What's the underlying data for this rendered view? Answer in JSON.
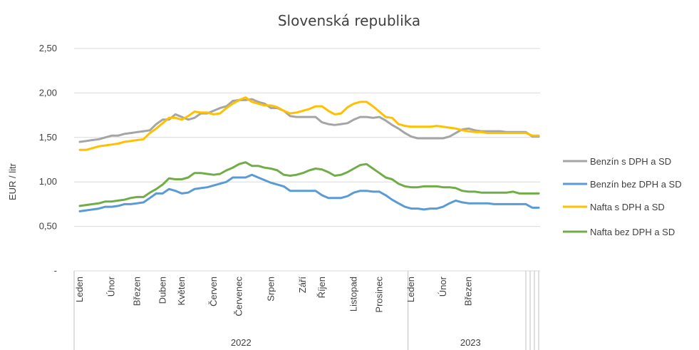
{
  "chart_data": {
    "type": "line",
    "title": "Slovenská republika",
    "ylabel": "EUR / litr",
    "ylim": [
      0,
      2.5
    ],
    "yticks": [
      {
        "value": 0,
        "label": "-"
      },
      {
        "value": 0.5,
        "label": "0,50"
      },
      {
        "value": 1.0,
        "label": "1,00"
      },
      {
        "value": 1.5,
        "label": "1,50"
      },
      {
        "value": 2.0,
        "label": "2,00"
      },
      {
        "value": 2.5,
        "label": "2,50"
      }
    ],
    "grid": true,
    "legend_position": "right",
    "x": [
      1,
      2,
      3,
      4,
      5,
      6,
      7,
      8,
      9,
      10,
      11,
      12,
      13,
      14,
      15,
      16,
      17,
      18,
      19,
      20,
      21,
      22,
      23,
      24,
      25,
      26,
      27,
      28,
      29,
      30,
      31,
      32,
      33,
      34,
      35,
      36,
      37,
      38,
      39,
      40,
      41,
      42,
      43,
      44,
      45,
      46,
      47,
      48,
      49,
      50,
      51,
      52,
      53,
      54,
      55,
      56,
      57,
      58,
      59,
      60,
      61,
      62,
      63,
      64,
      65,
      66,
      67,
      68,
      69,
      70,
      71,
      72,
      73
    ],
    "x_month_labels": [
      {
        "label": "Leden",
        "week": 1
      },
      {
        "label": "Únor",
        "week": 6
      },
      {
        "label": "Březen",
        "week": 10
      },
      {
        "label": "Duben",
        "week": 14
      },
      {
        "label": "Květen",
        "week": 17
      },
      {
        "label": "Červen",
        "week": 22
      },
      {
        "label": "Červenec",
        "week": 26
      },
      {
        "label": "Srpen",
        "week": 31
      },
      {
        "label": "Září",
        "week": 36
      },
      {
        "label": "Říjen",
        "week": 39
      },
      {
        "label": "Listopad",
        "week": 44
      },
      {
        "label": "Prosinec",
        "week": 48
      },
      {
        "label": "Leden",
        "week": 53
      },
      {
        "label": "Únor",
        "week": 58
      },
      {
        "label": "Březen",
        "week": 62
      }
    ],
    "x_year_labels": [
      {
        "label": "2022",
        "from_week": 1,
        "to_week": 52
      },
      {
        "label": "2023",
        "from_week": 53,
        "to_week": 73
      }
    ],
    "series": [
      {
        "name": "Benzín s DPH a SD",
        "color": "#a5a5a5",
        "values": [
          1.45,
          1.46,
          1.47,
          1.48,
          1.5,
          1.52,
          1.52,
          1.54,
          1.55,
          1.56,
          1.57,
          1.58,
          1.65,
          1.7,
          1.7,
          1.76,
          1.73,
          1.7,
          1.72,
          1.77,
          1.77,
          1.8,
          1.83,
          1.85,
          1.91,
          1.92,
          1.92,
          1.93,
          1.9,
          1.88,
          1.83,
          1.83,
          1.8,
          1.74,
          1.73,
          1.73,
          1.73,
          1.73,
          1.67,
          1.65,
          1.64,
          1.65,
          1.66,
          1.7,
          1.73,
          1.73,
          1.72,
          1.73,
          1.69,
          1.64,
          1.6,
          1.55,
          1.51,
          1.49,
          1.49,
          1.49,
          1.49,
          1.49,
          1.51,
          1.55,
          1.59,
          1.6,
          1.58,
          1.57,
          1.57,
          1.57,
          1.57,
          1.56,
          1.56,
          1.56,
          1.56,
          1.51,
          1.51
        ]
      },
      {
        "name": "Benzín bez DPH a SD",
        "color": "#5b9bd5",
        "values": [
          0.67,
          0.68,
          0.69,
          0.7,
          0.72,
          0.72,
          0.73,
          0.75,
          0.75,
          0.76,
          0.77,
          0.82,
          0.87,
          0.87,
          0.92,
          0.9,
          0.87,
          0.88,
          0.92,
          0.93,
          0.94,
          0.96,
          0.98,
          1.0,
          1.05,
          1.05,
          1.05,
          1.08,
          1.05,
          1.02,
          0.99,
          0.97,
          0.95,
          0.9,
          0.9,
          0.9,
          0.9,
          0.9,
          0.85,
          0.82,
          0.82,
          0.82,
          0.84,
          0.88,
          0.9,
          0.9,
          0.89,
          0.89,
          0.85,
          0.8,
          0.76,
          0.72,
          0.7,
          0.7,
          0.69,
          0.7,
          0.7,
          0.72,
          0.76,
          0.79,
          0.77,
          0.76,
          0.76,
          0.76,
          0.76,
          0.75,
          0.75,
          0.75,
          0.75,
          0.75,
          0.75,
          0.71,
          0.71
        ]
      },
      {
        "name": "Nafta s DPH a SD",
        "color": "#ffc000",
        "values": [
          1.36,
          1.36,
          1.38,
          1.4,
          1.41,
          1.42,
          1.43,
          1.45,
          1.46,
          1.47,
          1.48,
          1.55,
          1.6,
          1.66,
          1.72,
          1.72,
          1.7,
          1.74,
          1.79,
          1.78,
          1.78,
          1.76,
          1.77,
          1.83,
          1.88,
          1.92,
          1.95,
          1.9,
          1.88,
          1.86,
          1.86,
          1.84,
          1.8,
          1.77,
          1.78,
          1.8,
          1.82,
          1.85,
          1.85,
          1.8,
          1.76,
          1.77,
          1.84,
          1.88,
          1.9,
          1.9,
          1.85,
          1.79,
          1.73,
          1.72,
          1.65,
          1.63,
          1.62,
          1.62,
          1.62,
          1.62,
          1.63,
          1.62,
          1.61,
          1.6,
          1.58,
          1.57,
          1.56,
          1.56,
          1.55,
          1.55,
          1.55,
          1.55,
          1.55,
          1.55,
          1.55,
          1.52,
          1.52
        ]
      },
      {
        "name": "Nafta bez DPH a SD",
        "color": "#70ad47",
        "values": [
          0.73,
          0.74,
          0.75,
          0.76,
          0.78,
          0.78,
          0.79,
          0.8,
          0.82,
          0.83,
          0.83,
          0.88,
          0.92,
          0.97,
          1.04,
          1.03,
          1.03,
          1.05,
          1.1,
          1.1,
          1.09,
          1.08,
          1.09,
          1.13,
          1.16,
          1.2,
          1.22,
          1.18,
          1.18,
          1.16,
          1.15,
          1.13,
          1.08,
          1.07,
          1.08,
          1.1,
          1.13,
          1.15,
          1.14,
          1.11,
          1.07,
          1.08,
          1.11,
          1.15,
          1.19,
          1.2,
          1.15,
          1.1,
          1.05,
          1.03,
          0.98,
          0.95,
          0.94,
          0.94,
          0.95,
          0.95,
          0.95,
          0.94,
          0.94,
          0.93,
          0.9,
          0.89,
          0.89,
          0.88,
          0.88,
          0.88,
          0.88,
          0.88,
          0.89,
          0.87,
          0.87,
          0.87,
          0.87
        ]
      }
    ]
  }
}
